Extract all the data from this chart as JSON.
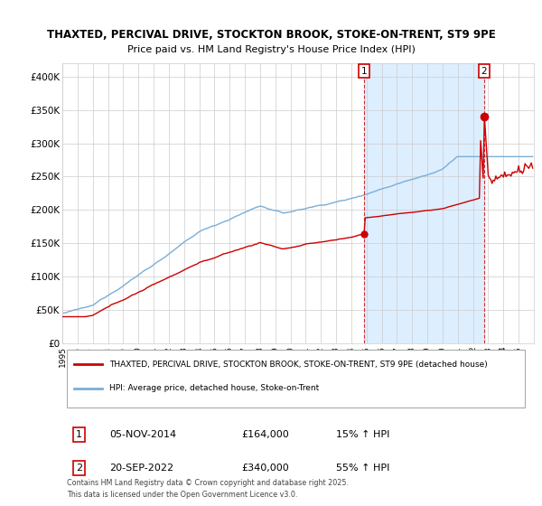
{
  "title1": "THAXTED, PERCIVAL DRIVE, STOCKTON BROOK, STOKE-ON-TRENT, ST9 9PE",
  "title2": "Price paid vs. HM Land Registry's House Price Index (HPI)",
  "ylim": [
    0,
    420000
  ],
  "yticks": [
    0,
    50000,
    100000,
    150000,
    200000,
    250000,
    300000,
    350000,
    400000
  ],
  "ytick_labels": [
    "£0",
    "£50K",
    "£100K",
    "£150K",
    "£200K",
    "£250K",
    "£300K",
    "£350K",
    "£400K"
  ],
  "x_start_year": 1995,
  "x_end_year": 2026,
  "sale1_year": 2014.85,
  "sale1_price": 164000,
  "sale1_label": "1",
  "sale1_date": "05-NOV-2014",
  "sale1_pct": "15%",
  "sale2_year": 2022.72,
  "sale2_price": 340000,
  "sale2_label": "2",
  "sale2_date": "20-SEP-2022",
  "sale2_pct": "55%",
  "red_line_color": "#cc0000",
  "blue_line_color": "#7aaed6",
  "shade_color": "#ddeeff",
  "vline_color": "#cc0000",
  "grid_color": "#cccccc",
  "background_color": "#ffffff",
  "legend_line1": "THAXTED, PERCIVAL DRIVE, STOCKTON BROOK, STOKE-ON-TRENT, ST9 9PE (detached house)",
  "legend_line2": "HPI: Average price, detached house, Stoke-on-Trent",
  "footnote": "Contains HM Land Registry data © Crown copyright and database right 2025.\nThis data is licensed under the Open Government Licence v3.0."
}
